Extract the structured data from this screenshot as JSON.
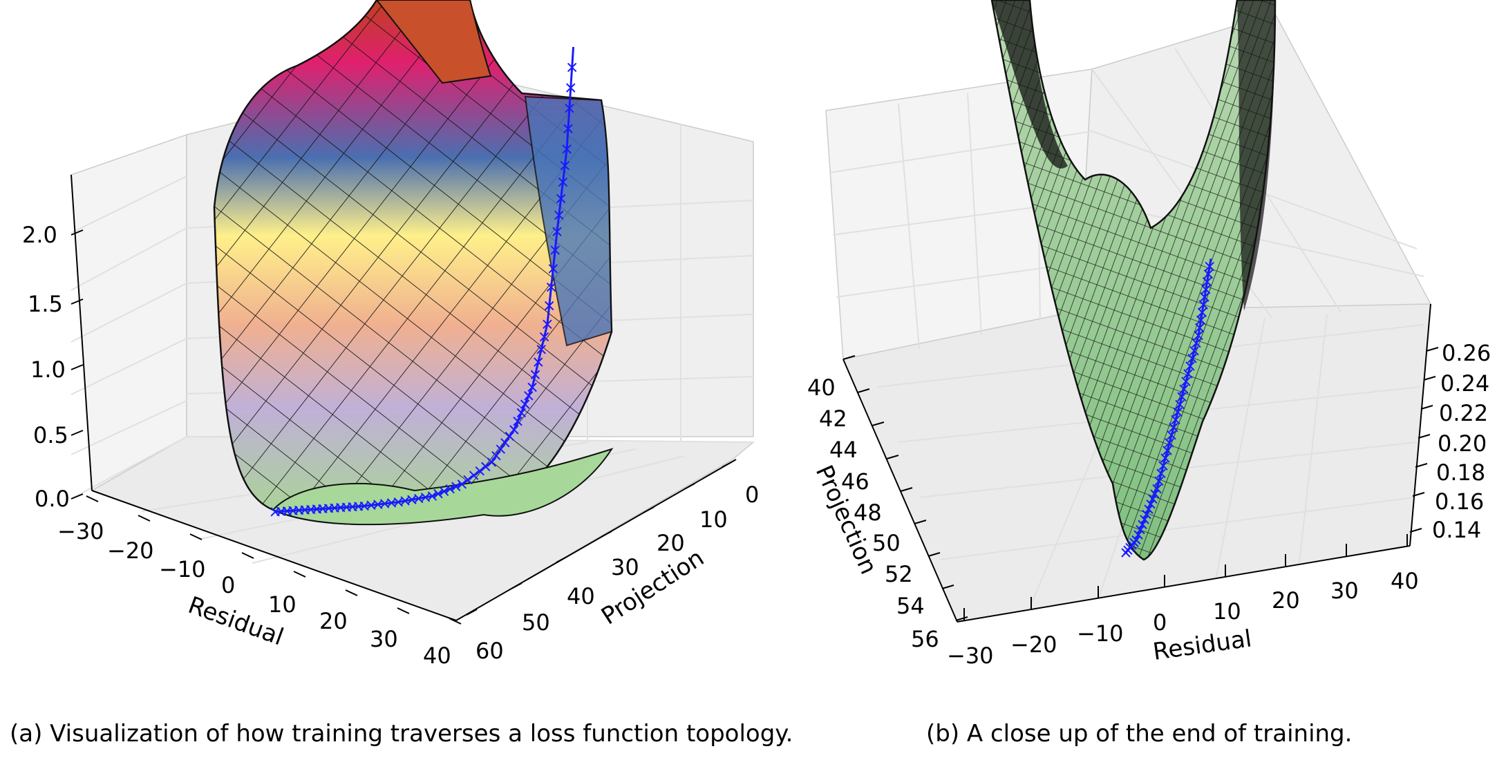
{
  "captions": {
    "a": "(a) Visualization of how training traverses a loss function topology.",
    "b": "(b) A close up of the end of training."
  },
  "colors": {
    "path": "#1a1aff",
    "pane": "#f2f2f2",
    "grid": "#e6e6e6",
    "surface_b": "#8fcf8f"
  },
  "chart_data": [
    {
      "type": "surface",
      "panel": "a",
      "xlabel": "Residual",
      "ylabel": "Projection",
      "zlabel": "",
      "x_ticks": [
        "−30",
        "−20",
        "−10",
        "0",
        "10",
        "20",
        "30",
        "40"
      ],
      "y_ticks": [
        "0",
        "10",
        "20",
        "30",
        "40",
        "50",
        "60"
      ],
      "z_ticks": [
        "0.0",
        "0.5",
        "1.0",
        "1.5",
        "2.0"
      ],
      "xlim": [
        -30,
        40
      ],
      "ylim": [
        0,
        60
      ],
      "zlim": [
        0,
        2.3
      ],
      "colormap": [
        "#2ca02c",
        "#b8e0a0",
        "#fff08a",
        "#f5b08a",
        "#e0207a",
        "#4a70b0",
        "#c04020"
      ],
      "series": [
        {
          "name": "training path",
          "marker": "x",
          "x": [
            -20,
            -14,
            -8,
            -2,
            5,
            12,
            18,
            24,
            28,
            31,
            33,
            34,
            35,
            35.5
          ],
          "y": [
            58,
            54,
            50,
            46,
            42,
            38,
            34,
            30,
            25,
            20,
            14,
            9,
            4,
            0
          ],
          "z": [
            0.02,
            0.02,
            0.02,
            0.02,
            0.03,
            0.05,
            0.1,
            0.2,
            0.35,
            0.55,
            0.85,
            1.3,
            1.7,
            2.2
          ]
        }
      ]
    },
    {
      "type": "surface",
      "panel": "b",
      "xlabel": "Residual",
      "ylabel": "Projection",
      "zlabel": "",
      "x_ticks": [
        "−30",
        "−20",
        "−10",
        "0",
        "10",
        "20",
        "30",
        "40"
      ],
      "y_ticks": [
        "40",
        "42",
        "44",
        "46",
        "48",
        "50",
        "52",
        "54",
        "56"
      ],
      "z_ticks": [
        "0.14",
        "0.16",
        "0.18",
        "0.20",
        "0.22",
        "0.24",
        "0.26"
      ],
      "xlim": [
        -30,
        40
      ],
      "ylim": [
        40,
        56
      ],
      "zlim": [
        0.13,
        0.27
      ],
      "series": [
        {
          "name": "training path",
          "marker": "x",
          "x": [
            -2,
            -1,
            0,
            1,
            2,
            3,
            4,
            5,
            5.5,
            6
          ],
          "y": [
            55,
            54,
            53,
            52,
            51,
            50,
            49,
            48,
            47,
            46
          ],
          "z": [
            0.135,
            0.14,
            0.15,
            0.16,
            0.175,
            0.19,
            0.205,
            0.22,
            0.235,
            0.25
          ]
        }
      ]
    }
  ]
}
